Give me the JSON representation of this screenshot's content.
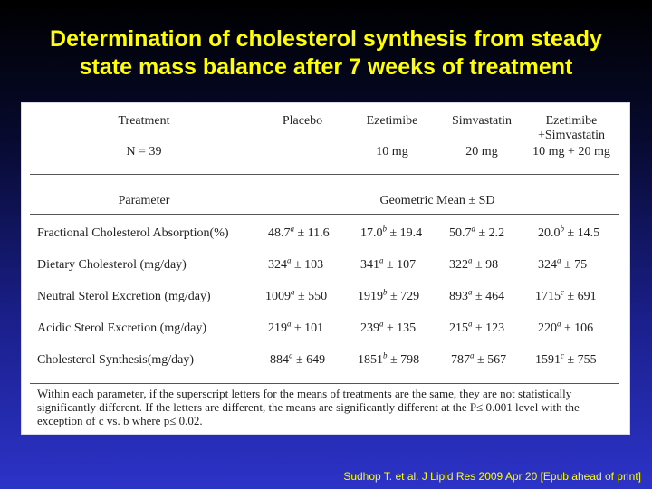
{
  "title": {
    "line1": "Determination of cholesterol synthesis from steady",
    "line2": "state mass balance after 7 weeks of treatment"
  },
  "table": {
    "header": {
      "treatment": "Treatment",
      "n": "N = 39",
      "groups": [
        {
          "name": "Placebo",
          "name2": "",
          "dose": ""
        },
        {
          "name": "Ezetimibe",
          "name2": "",
          "dose": "10 mg"
        },
        {
          "name": "Simvastatin",
          "name2": "",
          "dose": "20 mg"
        },
        {
          "name": "Ezetimibe",
          "name2": "+Simvastatin",
          "dose": "10 mg + 20 mg"
        }
      ]
    },
    "subheader": {
      "parameter": "Parameter",
      "stat": "Geometric Mean ± SD"
    },
    "rows": [
      {
        "label": "Fractional Cholesterol Absorption(%)",
        "cells": [
          {
            "mean": "48.7",
            "sup": "a",
            "sd": " ± 11.6"
          },
          {
            "mean": "17.0",
            "sup": "b",
            "sd": " ± 19.4"
          },
          {
            "mean": "50.7",
            "sup": "a",
            "sd": " ± 2.2"
          },
          {
            "mean": "20.0",
            "sup": "b",
            "sd": " ± 14.5"
          }
        ]
      },
      {
        "label": "Dietary Cholesterol (mg/day)",
        "cells": [
          {
            "mean": "324",
            "sup": "a",
            "sd": " ± 103"
          },
          {
            "mean": "341",
            "sup": "a",
            "sd": " ± 107"
          },
          {
            "mean": "322",
            "sup": "a",
            "sd": " ± 98"
          },
          {
            "mean": "324",
            "sup": "a",
            "sd": " ± 75"
          }
        ]
      },
      {
        "label": "Neutral Sterol Excretion (mg/day)",
        "cells": [
          {
            "mean": "1009",
            "sup": "a",
            "sd": " ± 550"
          },
          {
            "mean": "1919",
            "sup": "b",
            "sd": " ± 729"
          },
          {
            "mean": "893",
            "sup": "a",
            "sd": " ± 464"
          },
          {
            "mean": "1715",
            "sup": "c",
            "sd": " ± 691"
          }
        ]
      },
      {
        "label": "Acidic Sterol Excretion (mg/day)",
        "cells": [
          {
            "mean": "219",
            "sup": "a",
            "sd": " ± 101"
          },
          {
            "mean": "239",
            "sup": "a",
            "sd": " ± 135"
          },
          {
            "mean": "215",
            "sup": "a",
            "sd": " ± 123"
          },
          {
            "mean": "220",
            "sup": "a",
            "sd": " ± 106"
          }
        ]
      },
      {
        "label": "Cholesterol Synthesis(mg/day)",
        "cells": [
          {
            "mean": "884",
            "sup": "a",
            "sd": " ± 649"
          },
          {
            "mean": "1851",
            "sup": "b",
            "sd": " ± 798"
          },
          {
            "mean": "787",
            "sup": "a",
            "sd": " ± 567"
          },
          {
            "mean": "1591",
            "sup": "c",
            "sd": " ± 755"
          }
        ]
      }
    ],
    "footnote": "Within each parameter, if the superscript letters for the means of treatments are the same, they are not statistically significantly different. If the letters are different, the means are significantly different at the P≤ 0.001 level with the exception of c vs. b where p≤ 0.02."
  },
  "citation": "Sudhop T. et al. J Lipid Res 2009 Apr 20 [Epub ahead of print]"
}
